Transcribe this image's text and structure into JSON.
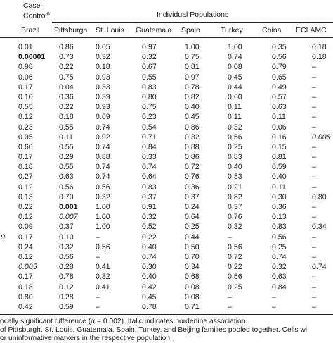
{
  "header": {
    "case_control_line1": "Case-",
    "case_control_line2": "Control",
    "case_control_note": "a",
    "group_title": "Individual Populations",
    "columns": [
      "Brazil",
      "Pittsburgh",
      "St. Louis",
      "Guatemala",
      "Spain",
      "Turkey",
      "China",
      "ECLAMC"
    ]
  },
  "rows": [
    [
      "0.01",
      "0.86",
      "0.65",
      "0.97",
      "1.00",
      "1.00",
      "0.35",
      "0.18"
    ],
    [
      "0.00001",
      "0.73",
      "0.32",
      "0.32",
      "0.75",
      "0.74",
      "0.56",
      "0.18"
    ],
    [
      "0.98",
      "0.22",
      "0.18",
      "0.67",
      "0.81",
      "0.08",
      "0.79",
      "–"
    ],
    [
      "0.06",
      "0.75",
      "0.93",
      "0.55",
      "0.97",
      "0.45",
      "0.65",
      "–"
    ],
    [
      "0.17",
      "0.04",
      "0.33",
      "0.83",
      "0.78",
      "0.44",
      "0.49",
      "–"
    ],
    [
      "0.10",
      "0.36",
      "0.39",
      "0.80",
      "0.82",
      "0.60",
      "0.57",
      "–"
    ],
    [
      "0.55",
      "0.22",
      "0.93",
      "0.75",
      "0.40",
      "0.11",
      "0.63",
      "–"
    ],
    [
      "0.12",
      "0.18",
      "0.69",
      "0.23",
      "0.45",
      "0.11",
      "0.11",
      "–"
    ],
    [
      "0.23",
      "0.55",
      "0.74",
      "0.54",
      "0.86",
      "0.32",
      "0.06",
      "–"
    ],
    [
      "0.05",
      "0.11",
      "0.92",
      "0.71",
      "0.32",
      "0.56",
      "0.16",
      "0.006"
    ],
    [
      "0.60",
      "0.55",
      "0.74",
      "0.84",
      "0.88",
      "0.25",
      "0.15",
      "–"
    ],
    [
      "0.17",
      "0.29",
      "0.88",
      "0.33",
      "0.86",
      "0.83",
      "0.81",
      "–"
    ],
    [
      "0.18",
      "0.55",
      "0.74",
      "0.74",
      "0.72",
      "0.40",
      "0.59",
      "–"
    ],
    [
      "0.27",
      "0.63",
      "0.74",
      "0.64",
      "0.76",
      "0.83",
      "0.40",
      "–"
    ],
    [
      "0.12",
      "0.56",
      "0.56",
      "0.83",
      "0.36",
      "0.21",
      "0.11",
      "–"
    ],
    [
      "0.13",
      "0.70",
      "0.32",
      "0.37",
      "0.37",
      "0.82",
      "0.30",
      "0.80"
    ],
    [
      "0.22",
      "0.001",
      "1.00",
      "0.91",
      "0.24",
      "0.37",
      "0.36",
      "–"
    ],
    [
      "0.12",
      "0.007",
      "1.00",
      "0.32",
      "0.64",
      "0.76",
      "0.13",
      "–"
    ],
    [
      "0.09",
      "0.37",
      "1.00",
      "0.52",
      "0.25",
      "0.32",
      "0.83",
      "0.34"
    ],
    [
      "0.17",
      "0.10",
      "–",
      "0.22",
      "0.44",
      "–",
      "0.56",
      "–"
    ],
    [
      "0.24",
      "0.32",
      "0.56",
      "0.40",
      "0.50",
      "0.56",
      "0.25",
      "–"
    ],
    [
      "0.12",
      "0.56",
      "–",
      "0.74",
      "0.70",
      "0.72",
      "0.74",
      "–"
    ],
    [
      "0.005",
      "0.28",
      "0.41",
      "0.30",
      "0.34",
      "0.22",
      "0.32",
      "0.74"
    ],
    [
      "0.17",
      "0.78",
      "0.32",
      "0.40",
      "0.68",
      "0.56",
      "0.63",
      "–"
    ],
    [
      "0.18",
      "0.12",
      "0.41",
      "0.42",
      "0.08",
      "0.25",
      "0.84",
      "–"
    ],
    [
      "0.80",
      "0.28",
      "–",
      "0.45",
      "0.08",
      "–",
      "–",
      "–"
    ],
    [
      "0.42",
      "0.59",
      "–",
      "0.78",
      "0.71",
      "–",
      "–",
      "–"
    ]
  ],
  "bold_cells": [
    [
      1,
      0
    ],
    [
      16,
      1
    ]
  ],
  "italic_cells": [
    [
      9,
      7
    ],
    [
      17,
      1
    ],
    [
      22,
      0
    ]
  ],
  "left_fragment": "9",
  "footnotes": [
    "ocally significant difference (α = 0.002). Italic indicates borderline association.",
    "of Pittsburgh, St. Louis, Guatemala, Spain, Turkey, and Beijing families pooled together. Cells wi",
    "or uninformative markers in the respective population."
  ]
}
